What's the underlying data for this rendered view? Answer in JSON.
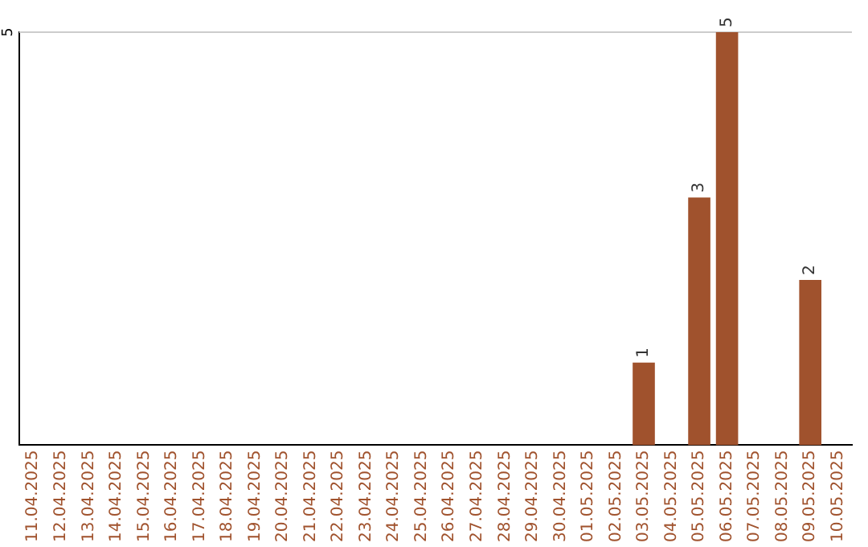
{
  "chart_data": {
    "type": "bar",
    "categories": [
      "11.04.2025",
      "12.04.2025",
      "13.04.2025",
      "14.04.2025",
      "15.04.2025",
      "16.04.2025",
      "17.04.2025",
      "18.04.2025",
      "19.04.2025",
      "20.04.2025",
      "21.04.2025",
      "22.04.2025",
      "23.04.2025",
      "24.04.2025",
      "25.04.2025",
      "26.04.2025",
      "27.04.2025",
      "28.04.2025",
      "29.04.2025",
      "30.04.2025",
      "01.05.2025",
      "02.05.2025",
      "03.05.2025",
      "04.05.2025",
      "05.05.2025",
      "06.05.2025",
      "07.05.2025",
      "08.05.2025",
      "09.05.2025",
      "10.05.2025"
    ],
    "values": [
      null,
      null,
      null,
      null,
      null,
      null,
      null,
      null,
      null,
      null,
      null,
      null,
      null,
      null,
      null,
      null,
      null,
      null,
      null,
      null,
      null,
      null,
      1,
      null,
      3,
      5,
      null,
      null,
      2,
      null
    ],
    "data_labels": true,
    "color": "#a0522d",
    "ylim": [
      0,
      5
    ],
    "ref_lines": [
      {
        "axis": "y",
        "value": 5,
        "label": "5",
        "color": "#cccccc"
      }
    ],
    "legend": false
  }
}
